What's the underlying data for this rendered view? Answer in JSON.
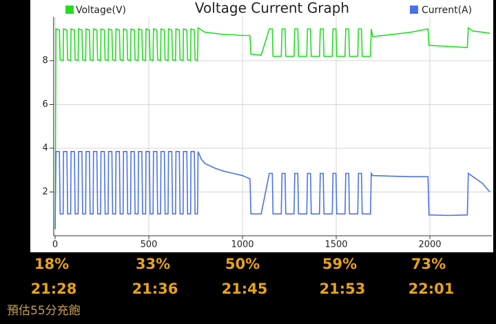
{
  "chart_data": {
    "type": "line",
    "title": "Voltage Current Graph",
    "x": [
      0,
      5,
      23,
      27,
      43,
      45,
      63,
      67,
      83,
      85,
      103,
      107,
      123,
      125,
      143,
      147,
      163,
      165,
      183,
      187,
      203,
      205,
      223,
      227,
      243,
      245,
      263,
      267,
      283,
      285,
      303,
      307,
      323,
      325,
      343,
      347,
      363,
      365,
      383,
      387,
      403,
      405,
      423,
      427,
      443,
      445,
      463,
      467,
      483,
      485,
      503,
      507,
      523,
      525,
      543,
      547,
      563,
      565,
      583,
      587,
      603,
      605,
      623,
      627,
      643,
      645,
      663,
      667,
      683,
      685,
      703,
      707,
      723,
      725,
      743,
      747,
      760,
      763,
      780,
      800,
      850,
      900,
      950,
      1000,
      1040,
      1045,
      1100,
      1143,
      1159,
      1163,
      1207,
      1211,
      1227,
      1231,
      1275,
      1279,
      1295,
      1299,
      1343,
      1347,
      1363,
      1367,
      1411,
      1415,
      1431,
      1435,
      1479,
      1483,
      1499,
      1503,
      1547,
      1551,
      1567,
      1571,
      1615,
      1619,
      1635,
      1639,
      1683,
      1687,
      1695,
      1800,
      1900,
      1990,
      1995,
      2100,
      2200,
      2205,
      2230,
      2280,
      2320
    ],
    "series": [
      {
        "name": "Voltage(V)",
        "color": "#22dd22",
        "values": [
          0.3,
          9.45,
          9.4,
          8.05,
          8.0,
          9.45,
          9.4,
          8.05,
          8.0,
          9.45,
          9.4,
          8.05,
          8.0,
          9.45,
          9.4,
          8.05,
          8.0,
          9.45,
          9.4,
          8.05,
          8.0,
          9.45,
          9.4,
          8.05,
          8.0,
          9.45,
          9.4,
          8.05,
          8.0,
          9.45,
          9.4,
          8.05,
          8.0,
          9.45,
          9.4,
          8.05,
          8.0,
          9.45,
          9.4,
          8.05,
          8.0,
          9.45,
          9.4,
          8.05,
          8.0,
          9.45,
          9.4,
          8.05,
          8.0,
          9.45,
          9.4,
          8.05,
          8.0,
          9.45,
          9.4,
          8.05,
          8.0,
          9.45,
          9.4,
          8.05,
          8.0,
          9.45,
          9.4,
          8.05,
          8.0,
          9.45,
          9.4,
          8.05,
          8.0,
          9.45,
          9.4,
          8.05,
          8.0,
          9.45,
          9.4,
          8.05,
          8.0,
          9.5,
          9.4,
          9.3,
          9.25,
          9.2,
          9.18,
          9.15,
          9.15,
          8.3,
          8.25,
          9.45,
          9.45,
          8.2,
          8.2,
          9.45,
          9.45,
          8.2,
          8.2,
          9.45,
          9.45,
          8.2,
          8.2,
          9.45,
          9.45,
          8.2,
          8.2,
          9.45,
          9.45,
          8.2,
          8.2,
          9.45,
          9.45,
          8.2,
          8.2,
          9.45,
          9.45,
          8.2,
          8.2,
          9.45,
          9.45,
          8.2,
          8.2,
          9.45,
          9.1,
          9.2,
          9.3,
          9.45,
          8.7,
          8.65,
          8.6,
          9.5,
          9.35,
          9.3,
          9.25
        ]
      },
      {
        "name": "Current(A)",
        "color": "#4a72e8",
        "values": [
          0.3,
          3.85,
          3.85,
          1.0,
          1.0,
          3.85,
          3.85,
          1.0,
          1.0,
          3.85,
          3.85,
          1.0,
          1.0,
          3.85,
          3.85,
          1.0,
          1.0,
          3.85,
          3.85,
          1.0,
          1.0,
          3.85,
          3.85,
          1.0,
          1.0,
          3.85,
          3.85,
          1.0,
          1.0,
          3.85,
          3.85,
          1.0,
          1.0,
          3.85,
          3.85,
          1.0,
          1.0,
          3.85,
          3.85,
          1.0,
          1.0,
          3.85,
          3.85,
          1.0,
          1.0,
          3.85,
          3.85,
          1.0,
          1.0,
          3.85,
          3.85,
          1.0,
          1.0,
          3.85,
          3.85,
          1.0,
          1.0,
          3.85,
          3.85,
          1.0,
          1.0,
          3.85,
          3.85,
          1.0,
          1.0,
          3.85,
          3.85,
          1.0,
          1.0,
          3.85,
          3.85,
          1.0,
          1.0,
          3.85,
          3.85,
          1.0,
          1.0,
          3.85,
          3.5,
          3.3,
          3.1,
          2.95,
          2.85,
          2.75,
          2.6,
          1.0,
          1.0,
          2.85,
          2.85,
          1.0,
          1.0,
          2.85,
          2.85,
          1.0,
          1.0,
          2.85,
          2.85,
          1.0,
          1.0,
          2.85,
          2.85,
          1.0,
          1.0,
          2.85,
          2.85,
          1.0,
          1.0,
          2.85,
          2.85,
          1.0,
          1.0,
          2.85,
          2.85,
          1.0,
          1.0,
          2.85,
          2.85,
          1.0,
          1.0,
          2.85,
          2.75,
          2.72,
          2.7,
          2.7,
          0.95,
          0.93,
          0.95,
          2.85,
          2.7,
          2.4,
          2.0
        ]
      }
    ],
    "xlim": [
      -8,
      2330
    ],
    "xticks": [
      0,
      500,
      1000,
      1500,
      2000
    ],
    "ylim": [
      0,
      10
    ],
    "yticks": [
      2,
      4,
      6,
      8
    ],
    "grid": true,
    "annotations": [
      {
        "percent": "18%",
        "time": "21:28"
      },
      {
        "percent": "33%",
        "time": "21:36"
      },
      {
        "percent": "50%",
        "time": "21:45"
      },
      {
        "percent": "59%",
        "time": "21:53"
      },
      {
        "percent": "73%",
        "time": "22:01"
      }
    ],
    "footnote": "預估55分充飽"
  }
}
